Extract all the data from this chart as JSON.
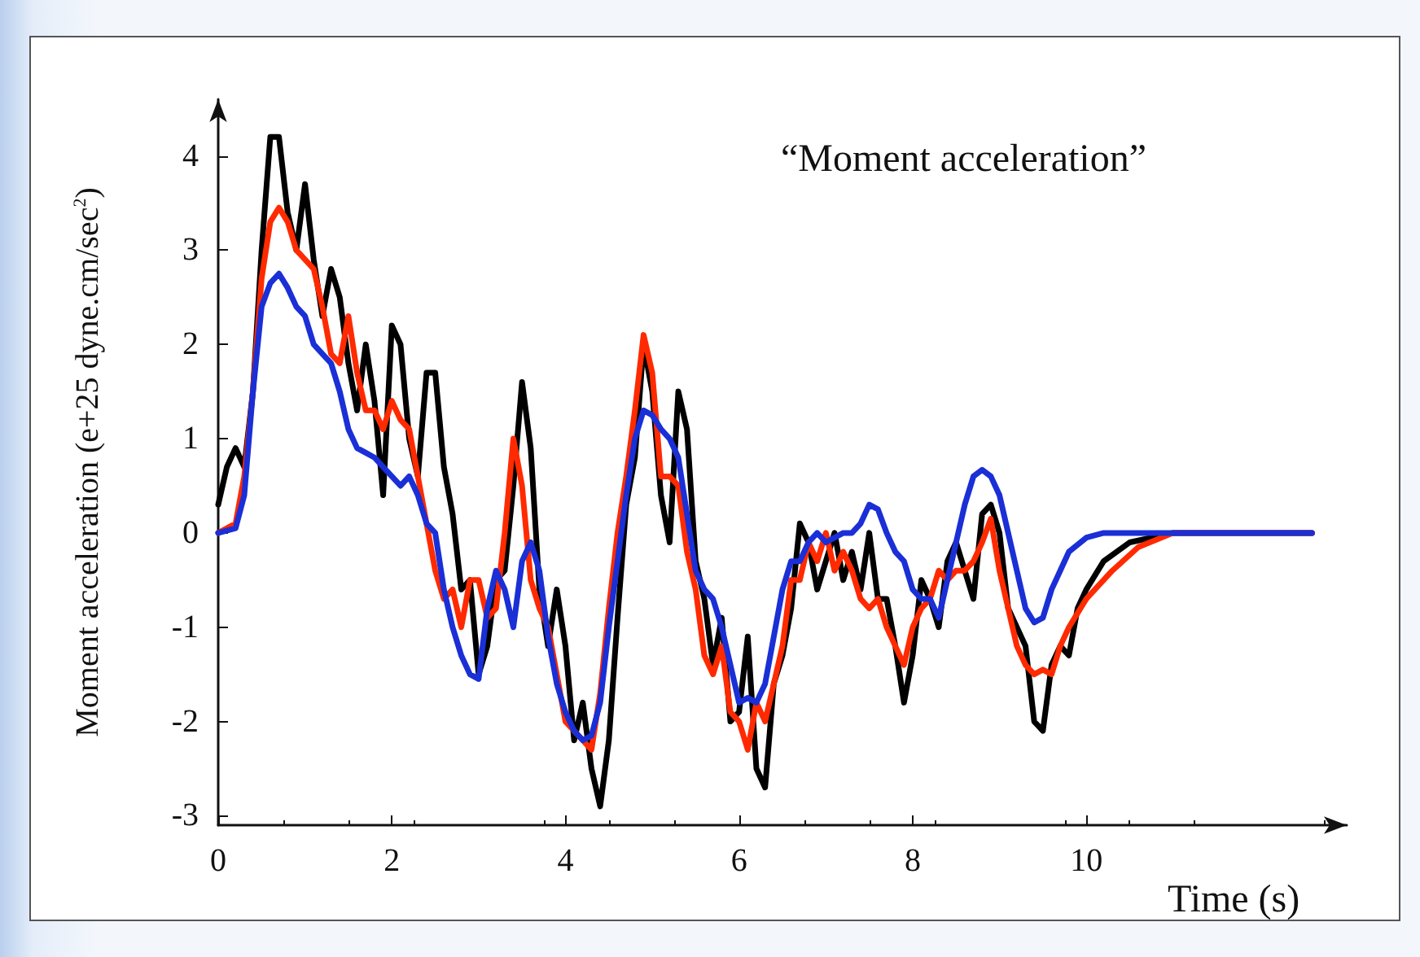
{
  "chart_data": {
    "type": "line",
    "title": "“Moment acceleration”",
    "xlabel": "Time (s)",
    "ylabel": "Moment acceleration (e+25 dyne.cm/sec$^{2}$)",
    "xlim": [
      0,
      13
    ],
    "xticks": [
      0,
      2,
      4,
      6,
      8,
      10
    ],
    "ylim": [
      -3.1,
      4.6
    ],
    "yticks": [
      -3,
      -2,
      -1,
      0,
      1,
      2,
      3,
      4
    ],
    "grid": false,
    "marker": "none",
    "line_style": "solid",
    "series": [
      {
        "color": "#000000",
        "x": [
          0,
          0.1,
          0.2,
          0.3,
          0.4,
          0.5,
          0.6,
          0.7,
          0.8,
          0.9,
          1.0,
          1.1,
          1.2,
          1.3,
          1.4,
          1.5,
          1.6,
          1.7,
          1.8,
          1.9,
          2.0,
          2.1,
          2.2,
          2.3,
          2.4,
          2.5,
          2.6,
          2.7,
          2.8,
          2.9,
          3.0,
          3.1,
          3.2,
          3.3,
          3.4,
          3.5,
          3.6,
          3.7,
          3.8,
          3.9,
          4.0,
          4.1,
          4.2,
          4.3,
          4.4,
          4.5,
          4.6,
          4.7,
          4.8,
          4.9,
          5.0,
          5.1,
          5.2,
          5.3,
          5.4,
          5.5,
          5.6,
          5.7,
          5.8,
          5.9,
          6.0,
          6.1,
          6.2,
          6.3,
          6.4,
          6.5,
          6.6,
          6.7,
          6.8,
          6.9,
          7.0,
          7.1,
          7.2,
          7.3,
          7.4,
          7.5,
          7.6,
          7.7,
          7.8,
          7.9,
          8.0,
          8.1,
          8.2,
          8.3,
          8.4,
          8.5,
          8.6,
          8.7,
          8.8,
          8.9,
          9.0,
          9.1,
          9.2,
          9.3,
          9.4,
          9.5,
          9.6,
          9.7,
          9.8,
          9.9,
          10.0,
          10.2,
          10.5,
          11,
          12.6
        ],
        "values": [
          0.3,
          0.7,
          0.9,
          0.7,
          1.5,
          3.0,
          4.2,
          4.2,
          3.4,
          3.0,
          3.7,
          2.9,
          2.3,
          2.8,
          2.5,
          1.8,
          1.3,
          2.0,
          1.4,
          0.4,
          2.2,
          2.0,
          1.0,
          0.6,
          1.7,
          1.7,
          0.7,
          0.2,
          -0.6,
          -0.5,
          -1.5,
          -1.2,
          -0.5,
          -0.4,
          0.5,
          1.6,
          0.9,
          -0.6,
          -1.2,
          -0.6,
          -1.2,
          -2.2,
          -1.8,
          -2.5,
          -2.9,
          -2.2,
          -0.9,
          0.3,
          0.8,
          2.0,
          1.5,
          0.4,
          -0.1,
          1.5,
          1.1,
          -0.3,
          -0.7,
          -1.4,
          -0.9,
          -2.0,
          -1.9,
          -1.1,
          -2.5,
          -2.7,
          -1.6,
          -1.3,
          -0.8,
          0.1,
          -0.1,
          -0.6,
          -0.3,
          0.0,
          -0.5,
          -0.2,
          -0.6,
          0.0,
          -0.7,
          -0.7,
          -1.2,
          -1.8,
          -1.3,
          -0.5,
          -0.7,
          -1.0,
          -0.3,
          -0.1,
          -0.4,
          -0.7,
          0.2,
          0.3,
          0.0,
          -0.8,
          -1.0,
          -1.2,
          -2.0,
          -2.1,
          -1.4,
          -1.2,
          -1.3,
          -0.8,
          -0.6,
          -0.3,
          -0.1,
          0,
          0
        ]
      },
      {
        "color": "#ff2a00",
        "x": [
          0,
          0.2,
          0.3,
          0.4,
          0.5,
          0.6,
          0.7,
          0.8,
          0.9,
          1.0,
          1.1,
          1.2,
          1.3,
          1.4,
          1.5,
          1.6,
          1.7,
          1.8,
          1.9,
          2.0,
          2.1,
          2.2,
          2.3,
          2.4,
          2.5,
          2.6,
          2.7,
          2.8,
          2.9,
          3.0,
          3.1,
          3.2,
          3.3,
          3.4,
          3.5,
          3.6,
          3.7,
          3.8,
          3.9,
          4.0,
          4.1,
          4.2,
          4.3,
          4.4,
          4.5,
          4.6,
          4.7,
          4.8,
          4.9,
          5.0,
          5.1,
          5.2,
          5.3,
          5.4,
          5.5,
          5.6,
          5.7,
          5.8,
          5.9,
          6.0,
          6.1,
          6.2,
          6.3,
          6.4,
          6.5,
          6.6,
          6.7,
          6.8,
          6.9,
          7.0,
          7.1,
          7.2,
          7.3,
          7.4,
          7.5,
          7.6,
          7.7,
          7.8,
          7.9,
          8.0,
          8.1,
          8.2,
          8.3,
          8.4,
          8.5,
          8.6,
          8.7,
          8.8,
          8.9,
          9.0,
          9.1,
          9.2,
          9.3,
          9.4,
          9.5,
          9.6,
          9.7,
          9.8,
          10.0,
          10.3,
          10.6,
          11,
          12.6
        ],
        "values": [
          0,
          0.1,
          0.6,
          1.5,
          2.7,
          3.3,
          3.45,
          3.3,
          3.0,
          2.9,
          2.8,
          2.4,
          1.9,
          1.8,
          2.3,
          1.7,
          1.3,
          1.3,
          1.1,
          1.4,
          1.2,
          1.1,
          0.6,
          0.1,
          -0.4,
          -0.7,
          -0.6,
          -1.0,
          -0.5,
          -0.5,
          -0.9,
          -0.8,
          0.0,
          1.0,
          0.5,
          -0.5,
          -0.8,
          -1.0,
          -1.5,
          -2.0,
          -2.1,
          -2.2,
          -2.3,
          -1.7,
          -0.8,
          0.0,
          0.6,
          1.3,
          2.1,
          1.7,
          0.6,
          0.6,
          0.5,
          -0.2,
          -0.6,
          -1.3,
          -1.5,
          -1.2,
          -1.9,
          -2.0,
          -2.3,
          -1.8,
          -2.0,
          -1.6,
          -1.2,
          -0.5,
          -0.5,
          -0.1,
          -0.3,
          0.0,
          -0.4,
          -0.2,
          -0.4,
          -0.7,
          -0.8,
          -0.7,
          -1.0,
          -1.2,
          -1.4,
          -1.0,
          -0.8,
          -0.7,
          -0.4,
          -0.5,
          -0.4,
          -0.4,
          -0.3,
          -0.1,
          0.15,
          -0.4,
          -0.8,
          -1.2,
          -1.4,
          -1.5,
          -1.45,
          -1.5,
          -1.2,
          -1.0,
          -0.7,
          -0.4,
          -0.15,
          0,
          0
        ]
      },
      {
        "color": "#1a2fd6",
        "x": [
          0,
          0.2,
          0.3,
          0.4,
          0.5,
          0.6,
          0.7,
          0.8,
          0.9,
          1.0,
          1.1,
          1.2,
          1.3,
          1.4,
          1.5,
          1.6,
          1.7,
          1.8,
          1.9,
          2.0,
          2.1,
          2.2,
          2.3,
          2.4,
          2.5,
          2.6,
          2.7,
          2.8,
          2.9,
          3.0,
          3.1,
          3.2,
          3.3,
          3.4,
          3.5,
          3.6,
          3.7,
          3.8,
          3.9,
          4.0,
          4.1,
          4.2,
          4.3,
          4.4,
          4.5,
          4.6,
          4.7,
          4.8,
          4.9,
          5.0,
          5.1,
          5.2,
          5.3,
          5.4,
          5.5,
          5.6,
          5.7,
          5.8,
          5.9,
          6.0,
          6.1,
          6.2,
          6.3,
          6.4,
          6.5,
          6.6,
          6.7,
          6.8,
          6.9,
          7.0,
          7.1,
          7.2,
          7.3,
          7.4,
          7.5,
          7.6,
          7.7,
          7.8,
          7.9,
          8.0,
          8.1,
          8.2,
          8.3,
          8.4,
          8.5,
          8.6,
          8.7,
          8.8,
          8.9,
          9.0,
          9.1,
          9.2,
          9.3,
          9.4,
          9.5,
          9.6,
          9.7,
          9.8,
          10.0,
          10.2,
          12.6
        ],
        "values": [
          0,
          0.05,
          0.4,
          1.5,
          2.4,
          2.65,
          2.75,
          2.6,
          2.4,
          2.3,
          2.0,
          1.9,
          1.8,
          1.5,
          1.1,
          0.9,
          0.85,
          0.8,
          0.7,
          0.6,
          0.5,
          0.6,
          0.4,
          0.1,
          0.0,
          -0.6,
          -1.0,
          -1.3,
          -1.5,
          -1.55,
          -0.8,
          -0.4,
          -0.6,
          -1.0,
          -0.3,
          -0.1,
          -0.4,
          -1.1,
          -1.6,
          -1.9,
          -2.1,
          -2.2,
          -2.15,
          -1.8,
          -1.0,
          -0.3,
          0.4,
          1.0,
          1.3,
          1.25,
          1.1,
          1.0,
          0.8,
          0.2,
          -0.4,
          -0.6,
          -0.7,
          -1.0,
          -1.4,
          -1.8,
          -1.75,
          -1.8,
          -1.6,
          -1.1,
          -0.6,
          -0.3,
          -0.3,
          -0.1,
          0.0,
          -0.1,
          -0.05,
          0.0,
          0.0,
          0.1,
          0.3,
          0.25,
          0.0,
          -0.2,
          -0.3,
          -0.6,
          -0.7,
          -0.7,
          -0.9,
          -0.5,
          -0.1,
          0.3,
          0.6,
          0.67,
          0.6,
          0.4,
          0.0,
          -0.4,
          -0.8,
          -0.95,
          -0.9,
          -0.6,
          -0.4,
          -0.2,
          -0.05,
          0,
          0
        ]
      }
    ]
  }
}
